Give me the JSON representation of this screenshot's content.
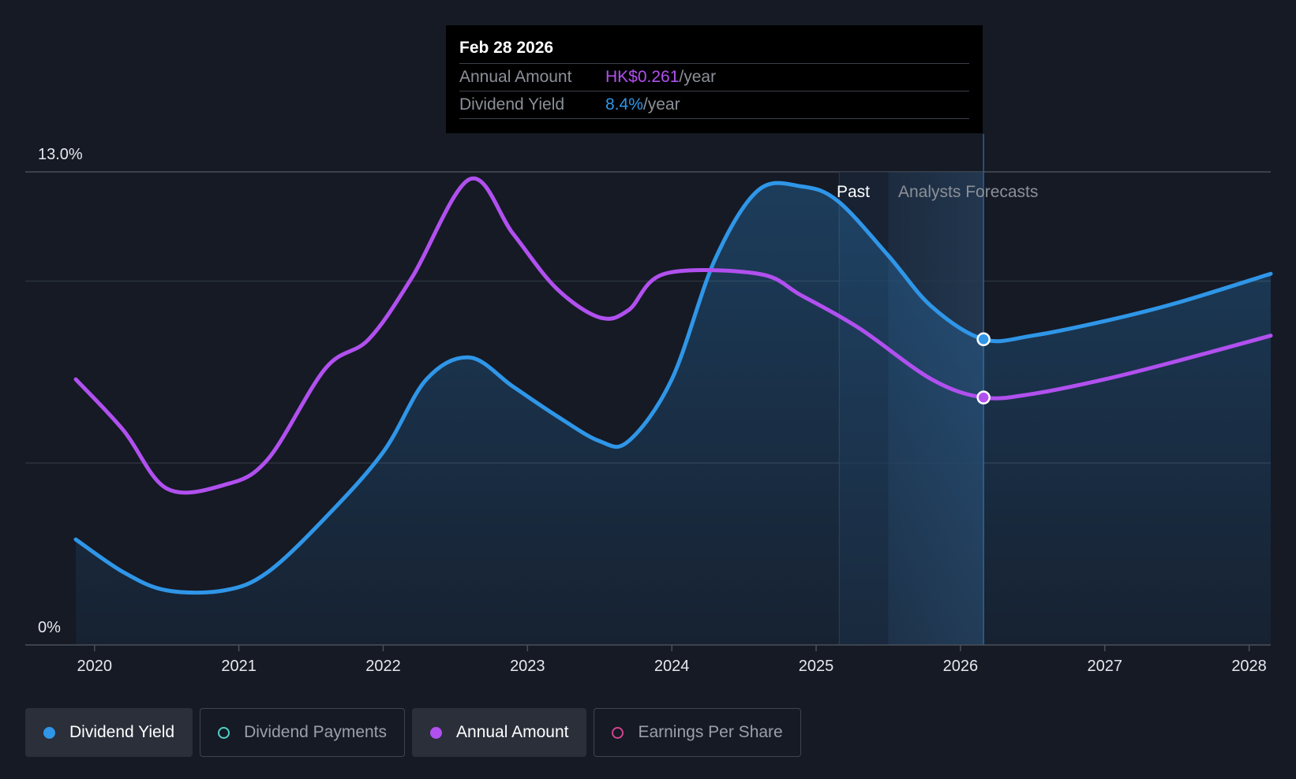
{
  "tooltip": {
    "date": "Feb 28 2026",
    "annual_label": "Annual Amount",
    "annual_value": "HK$0.261",
    "annual_unit": "/year",
    "yield_label": "Dividend Yield",
    "yield_value": "8.4%",
    "yield_unit": "/year"
  },
  "regions": {
    "past_label": "Past",
    "forecast_label": "Analysts Forecasts"
  },
  "legend": [
    {
      "label": "Dividend Yield",
      "color": "#2f96e8",
      "active": true
    },
    {
      "label": "Dividend Payments",
      "color": "#4fd1c5",
      "active": false
    },
    {
      "label": "Annual Amount",
      "color": "#b150ef",
      "active": true
    },
    {
      "label": "Earnings Per Share",
      "color": "#d2448f",
      "active": false
    }
  ],
  "colors": {
    "yield": "#2f96e8",
    "annual": "#b150ef",
    "background": "#151a25"
  },
  "chart_data": {
    "type": "line",
    "y_tick_labels": [
      "13.0%",
      "0%"
    ],
    "ylim": [
      0,
      13.0
    ],
    "xlim": [
      2019.87,
      2028.15
    ],
    "x_tick_labels": [
      "2020",
      "2021",
      "2022",
      "2023",
      "2024",
      "2025",
      "2026",
      "2027",
      "2028"
    ],
    "past_end": 2025.16,
    "forecast_band": [
      2025.5,
      2026.16
    ],
    "highlight_x": 2026.16,
    "series": [
      {
        "name": "Dividend Yield",
        "color": "#2f96e8",
        "filled": true,
        "points": [
          [
            2019.87,
            2.9
          ],
          [
            2020.2,
            2.0
          ],
          [
            2020.5,
            1.5
          ],
          [
            2020.9,
            1.5
          ],
          [
            2021.2,
            2.0
          ],
          [
            2021.6,
            3.5
          ],
          [
            2022.0,
            5.3
          ],
          [
            2022.3,
            7.3
          ],
          [
            2022.6,
            7.9
          ],
          [
            2022.9,
            7.1
          ],
          [
            2023.2,
            6.3
          ],
          [
            2023.5,
            5.6
          ],
          [
            2023.7,
            5.6
          ],
          [
            2024.0,
            7.3
          ],
          [
            2024.3,
            10.6
          ],
          [
            2024.6,
            12.5
          ],
          [
            2024.9,
            12.6
          ],
          [
            2025.15,
            12.2
          ],
          [
            2025.5,
            10.7
          ],
          [
            2025.8,
            9.3
          ],
          [
            2026.16,
            8.4
          ],
          [
            2026.5,
            8.5
          ],
          [
            2027.0,
            8.9
          ],
          [
            2027.5,
            9.4
          ],
          [
            2028.15,
            10.2
          ]
        ]
      },
      {
        "name": "Annual Amount",
        "color": "#b150ef",
        "filled": false,
        "points": [
          [
            2019.87,
            7.3
          ],
          [
            2020.2,
            5.9
          ],
          [
            2020.5,
            4.3
          ],
          [
            2020.9,
            4.4
          ],
          [
            2021.2,
            5.1
          ],
          [
            2021.6,
            7.6
          ],
          [
            2021.9,
            8.4
          ],
          [
            2022.2,
            10.1
          ],
          [
            2022.6,
            12.8
          ],
          [
            2022.9,
            11.3
          ],
          [
            2023.2,
            9.8
          ],
          [
            2023.5,
            9.0
          ],
          [
            2023.7,
            9.2
          ],
          [
            2023.95,
            10.2
          ],
          [
            2024.6,
            10.2
          ],
          [
            2024.9,
            9.6
          ],
          [
            2025.3,
            8.7
          ],
          [
            2025.8,
            7.3
          ],
          [
            2026.16,
            6.8
          ],
          [
            2026.5,
            6.9
          ],
          [
            2027.0,
            7.3
          ],
          [
            2027.5,
            7.8
          ],
          [
            2028.15,
            8.5
          ]
        ]
      }
    ]
  }
}
